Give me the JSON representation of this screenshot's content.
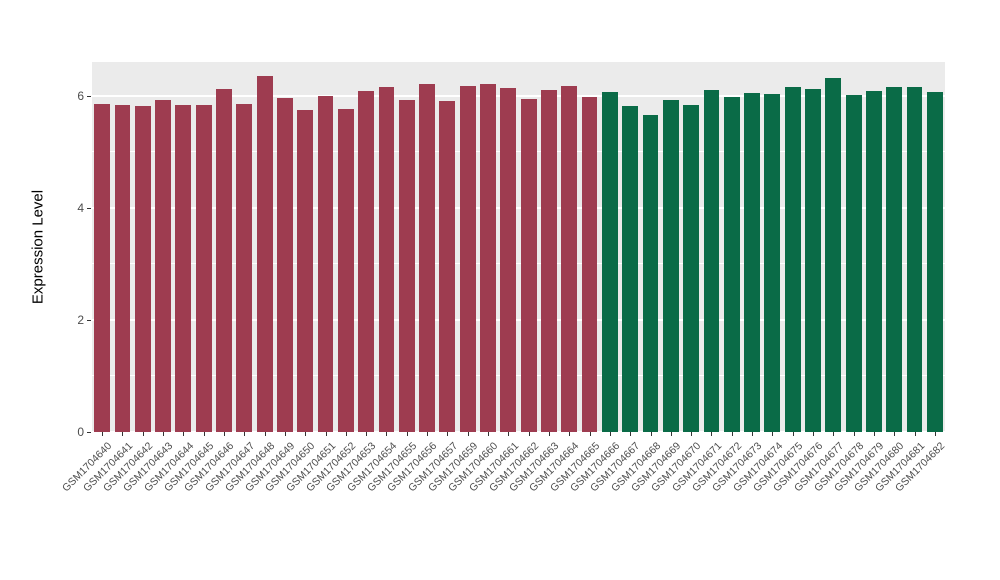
{
  "chart_data": {
    "type": "bar",
    "title": "",
    "xlabel": "",
    "ylabel": "Expression Level",
    "ylim": [
      0,
      6.6
    ],
    "yticks": [
      0,
      2,
      4,
      6
    ],
    "minor_yticks": [
      1,
      3,
      5
    ],
    "legend": "none",
    "panel_bg": "#ebebeb",
    "grid_color": "#ffffff",
    "colors": {
      "groupA": "#9e3c50",
      "groupB": "#0a6b47"
    },
    "categories": [
      "GSM1704640",
      "GSM1704641",
      "GSM1704642",
      "GSM1704643",
      "GSM1704644",
      "GSM1704645",
      "GSM1704646",
      "GSM1704647",
      "GSM1704648",
      "GSM1704649",
      "GSM1704650",
      "GSM1704651",
      "GSM1704652",
      "GSM1704653",
      "GSM1704654",
      "GSM1704655",
      "GSM1704656",
      "GSM1704657",
      "GSM1704659",
      "GSM1704660",
      "GSM1704661",
      "GSM1704662",
      "GSM1704663",
      "GSM1704664",
      "GSM1704665",
      "GSM1704666",
      "GSM1704667",
      "GSM1704668",
      "GSM1704669",
      "GSM1704670",
      "GSM1704671",
      "GSM1704672",
      "GSM1704673",
      "GSM1704674",
      "GSM1704675",
      "GSM1704676",
      "GSM1704677",
      "GSM1704678",
      "GSM1704679",
      "GSM1704680",
      "GSM1704681",
      "GSM1704682"
    ],
    "values": [
      5.86,
      5.83,
      5.81,
      5.92,
      5.83,
      5.83,
      6.12,
      5.86,
      6.35,
      5.95,
      5.74,
      5.99,
      5.77,
      6.08,
      6.15,
      5.92,
      6.2,
      5.9,
      6.17,
      6.2,
      6.13,
      5.94,
      6.1,
      6.17,
      5.97,
      6.06,
      5.81,
      5.65,
      5.92,
      5.83,
      6.1,
      5.97,
      6.04,
      6.03,
      6.15,
      6.12,
      6.31,
      6.01,
      6.08,
      6.15,
      6.15,
      6.06
    ],
    "groups": [
      "groupA",
      "groupA",
      "groupA",
      "groupA",
      "groupA",
      "groupA",
      "groupA",
      "groupA",
      "groupA",
      "groupA",
      "groupA",
      "groupA",
      "groupA",
      "groupA",
      "groupA",
      "groupA",
      "groupA",
      "groupA",
      "groupA",
      "groupA",
      "groupA",
      "groupA",
      "groupA",
      "groupA",
      "groupA",
      "groupB",
      "groupB",
      "groupB",
      "groupB",
      "groupB",
      "groupB",
      "groupB",
      "groupB",
      "groupB",
      "groupB",
      "groupB",
      "groupB",
      "groupB",
      "groupB",
      "groupB",
      "groupB",
      "groupB"
    ]
  }
}
